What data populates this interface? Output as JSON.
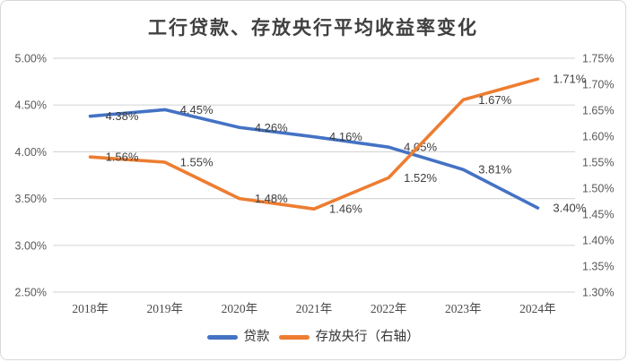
{
  "title": "工行贷款、存放央行平均收益率变化",
  "chart_data": {
    "type": "line",
    "title": "工行贷款、存放央行平均收益率变化",
    "categories": [
      "2018年",
      "2019年",
      "2020年",
      "2021年",
      "2022年",
      "2023年",
      "2024年"
    ],
    "series": [
      {
        "name": "贷款",
        "axis": "left",
        "color": "#4472C4",
        "values": [
          4.38,
          4.45,
          4.26,
          4.16,
          4.05,
          3.81,
          3.4
        ],
        "labels": [
          "4.38%",
          "4.45%",
          "4.26%",
          "4.16%",
          "4.05%",
          "3.81%",
          "3.40%"
        ]
      },
      {
        "name": "存放央行（右轴）",
        "axis": "right",
        "color": "#ED7D31",
        "values": [
          1.56,
          1.55,
          1.48,
          1.46,
          1.52,
          1.67,
          1.71
        ],
        "labels": [
          "1.56%",
          "1.55%",
          "1.48%",
          "1.46%",
          "1.52%",
          "1.67%",
          "1.71%"
        ]
      }
    ],
    "left_axis": {
      "min": 2.5,
      "max": 5.0,
      "ticks": [
        {
          "value": 5.0,
          "label": "5.00%"
        },
        {
          "value": 4.5,
          "label": "4.50%"
        },
        {
          "value": 4.0,
          "label": "4.00%"
        },
        {
          "value": 3.5,
          "label": "3.50%"
        },
        {
          "value": 3.0,
          "label": "3.00%"
        },
        {
          "value": 2.5,
          "label": "2.50%"
        }
      ]
    },
    "right_axis": {
      "min": 1.3,
      "max": 1.75,
      "ticks": [
        {
          "value": 1.75,
          "label": "1.75%"
        },
        {
          "value": 1.7,
          "label": "1.70%"
        },
        {
          "value": 1.65,
          "label": "1.65%"
        },
        {
          "value": 1.6,
          "label": "1.60%"
        },
        {
          "value": 1.55,
          "label": "1.55%"
        },
        {
          "value": 1.5,
          "label": "1.50%"
        },
        {
          "value": 1.45,
          "label": "1.45%"
        },
        {
          "value": 1.4,
          "label": "1.40%"
        },
        {
          "value": 1.35,
          "label": "1.35%"
        },
        {
          "value": 1.3,
          "label": "1.30%"
        }
      ]
    },
    "grid": true,
    "legend_position": "bottom",
    "colors": {
      "grid": "#d9d9d9",
      "axis_text": "#595959",
      "data_label": "#3d3d3d",
      "title": "#404040"
    }
  },
  "legend": {
    "items": [
      {
        "label": "贷款",
        "color": "#4472C4"
      },
      {
        "label": "存放央行（右轴）",
        "color": "#ED7D31"
      }
    ]
  }
}
